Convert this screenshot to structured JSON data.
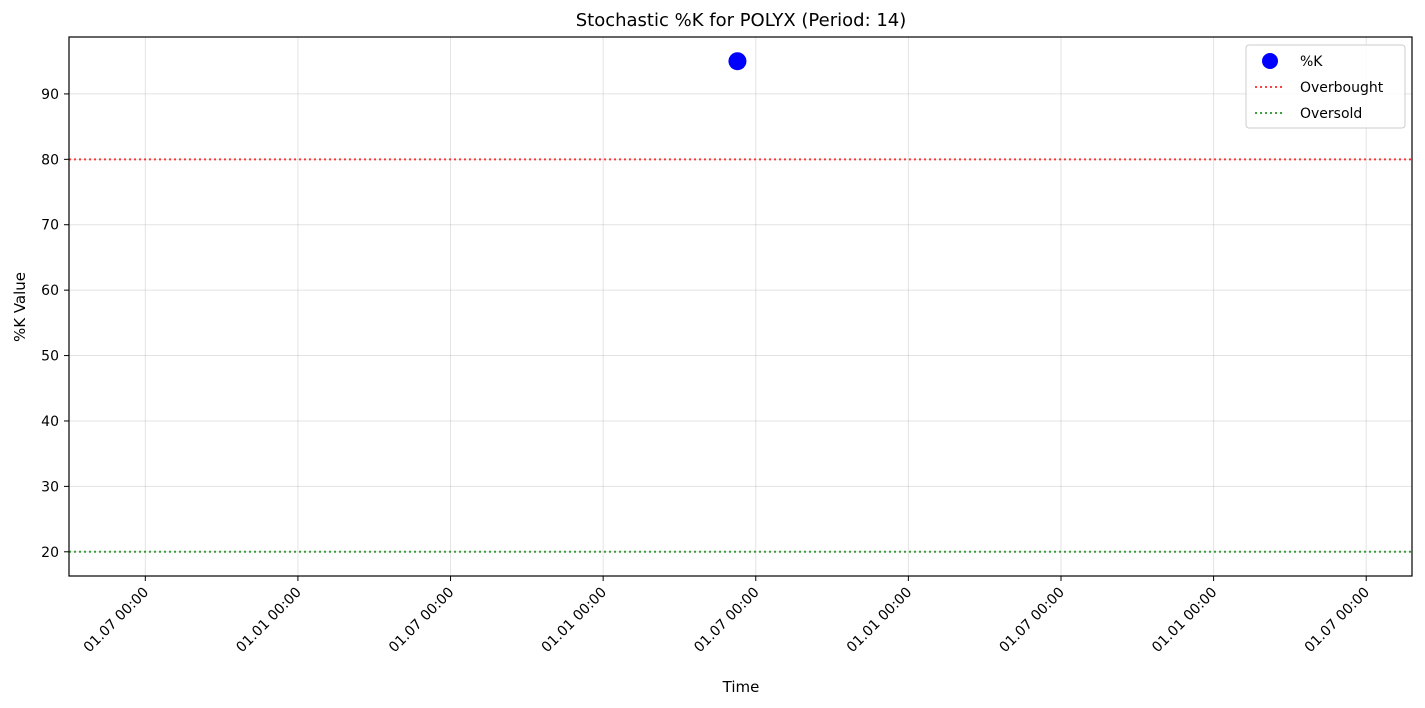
{
  "chart_data": {
    "type": "scatter",
    "title": "Stochastic %K for POLYX (Period: 14)",
    "xlabel": "Time",
    "ylabel": "%K Value",
    "ylim": [
      16.3,
      98.7
    ],
    "y_ticks": [
      20,
      30,
      40,
      50,
      60,
      70,
      80,
      90
    ],
    "x_tick_labels": [
      "01.07 00:00",
      "01.01 00:00",
      "01.07 00:00",
      "01.01 00:00",
      "01.07 00:00",
      "01.01 00:00",
      "01.07 00:00",
      "01.01 00:00",
      "01.07 00:00"
    ],
    "x_tick_index_range": [
      -0.5,
      8.3
    ],
    "series": [
      {
        "name": "%K",
        "color": "#0000ff",
        "marker": "circle",
        "points": [
          {
            "x": "01.07 00:00",
            "x_index": 3.88,
            "y": 95.0
          }
        ]
      }
    ],
    "reference_lines": [
      {
        "name": "Overbought",
        "y": 80,
        "color": "#ff0000",
        "style": "dotted"
      },
      {
        "name": "Oversold",
        "y": 20,
        "color": "#008000",
        "style": "dotted"
      }
    ],
    "grid": true,
    "legend": {
      "position": "top-right",
      "entries": [
        "%K",
        "Overbought",
        "Oversold"
      ]
    }
  }
}
